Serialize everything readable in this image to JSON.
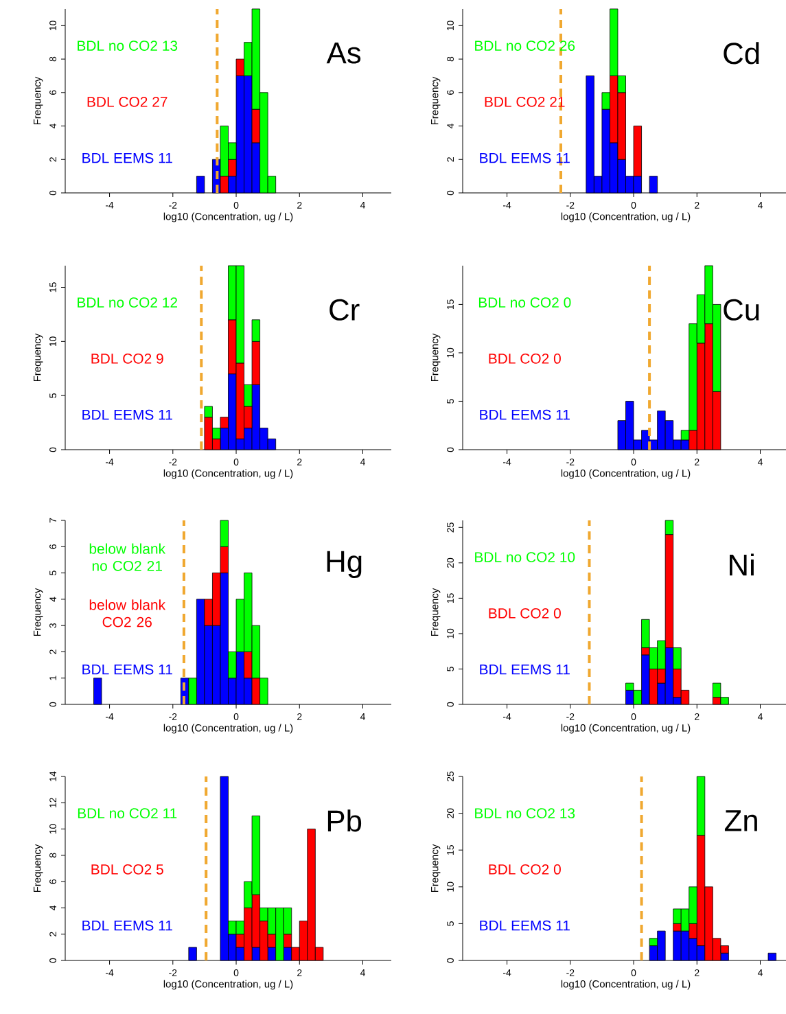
{
  "chart_data": [
    {
      "type": "bar",
      "title": "As",
      "xlabel": "log10 (Concentration, ug / L)",
      "ylabel": "Frequency",
      "stacked": true,
      "x": [
        -1.125,
        -0.875,
        -0.625,
        -0.375,
        -0.125,
        0.125,
        0.375,
        0.625,
        0.875,
        1.125
      ],
      "series": [
        {
          "name": "BDL EEMS 11",
          "color": "#0000ff",
          "values": [
            1,
            null,
            2,
            null,
            1,
            7,
            7,
            3,
            null,
            null
          ]
        },
        {
          "name": "BDL CO2 27",
          "color": "#ff0000",
          "values": [
            null,
            null,
            null,
            1,
            1,
            1,
            null,
            2,
            null,
            null
          ]
        },
        {
          "name": "BDL no CO2 13",
          "color": "#00ff00",
          "values": [
            null,
            null,
            null,
            3,
            1,
            null,
            2,
            6,
            6,
            1
          ]
        }
      ],
      "xlim": [
        -5.4,
        4.9
      ],
      "xticks": [
        -4,
        -2,
        0,
        2,
        4
      ],
      "ylim": [
        0,
        11
      ],
      "yticks": [
        0,
        2,
        4,
        6,
        8,
        10
      ],
      "ref_lines": [
        {
          "axis": "x",
          "value": -0.6,
          "color": "#f0a830",
          "line_style": "dashed"
        }
      ]
    },
    {
      "type": "bar",
      "title": "Cd",
      "xlabel": "log10 (Concentration, ug / L)",
      "ylabel": "Frequency",
      "stacked": true,
      "x": [
        -1.375,
        -1.125,
        -0.875,
        -0.625,
        -0.375,
        -0.125,
        0.125,
        0.375,
        0.625
      ],
      "series": [
        {
          "name": "BDL EEMS 11",
          "color": "#0000ff",
          "values": [
            7,
            1,
            5,
            3,
            2,
            1,
            1,
            null,
            1
          ]
        },
        {
          "name": "BDL CO2 21",
          "color": "#ff0000",
          "values": [
            null,
            null,
            null,
            4,
            4,
            null,
            3,
            null,
            null
          ]
        },
        {
          "name": "BDL no CO2 26",
          "color": "#00ff00",
          "values": [
            null,
            null,
            1,
            4,
            1,
            null,
            null,
            null,
            null
          ]
        }
      ],
      "xlim": [
        -5.4,
        4.9
      ],
      "xticks": [
        -4,
        -2,
        0,
        2,
        4
      ],
      "ylim": [
        0,
        11
      ],
      "yticks": [
        0,
        2,
        4,
        6,
        8,
        10
      ],
      "ref_lines": [
        {
          "axis": "x",
          "value": -2.3,
          "color": "#f0a830",
          "line_style": "dashed"
        }
      ]
    },
    {
      "type": "bar",
      "title": "Cr",
      "xlabel": "log10 (Concentration, ug / L)",
      "ylabel": "Frequency",
      "stacked": true,
      "x": [
        -0.875,
        -0.625,
        -0.375,
        -0.125,
        0.125,
        0.375,
        0.625,
        0.875,
        1.125
      ],
      "series": [
        {
          "name": "BDL EEMS 11",
          "color": "#0000ff",
          "values": [
            null,
            null,
            2,
            7,
            1,
            2,
            6,
            2,
            1
          ]
        },
        {
          "name": "BDL CO2 9",
          "color": "#ff0000",
          "values": [
            3,
            1,
            1,
            5,
            7,
            2,
            4,
            null,
            null
          ]
        },
        {
          "name": "BDL no CO2 12",
          "color": "#00ff00",
          "values": [
            1,
            1,
            null,
            5,
            9,
            2,
            2,
            null,
            null
          ]
        }
      ],
      "xlim": [
        -5.4,
        4.9
      ],
      "xticks": [
        -4,
        -2,
        0,
        2,
        4
      ],
      "ylim": [
        0,
        17
      ],
      "yticks": [
        0,
        5,
        10,
        15
      ],
      "ref_lines": [
        {
          "axis": "x",
          "value": -1.1,
          "color": "#f0a830",
          "line_style": "dashed"
        }
      ]
    },
    {
      "type": "bar",
      "title": "Cu",
      "xlabel": "log10 (Concentration, ug / L)",
      "ylabel": "Frequency",
      "stacked": true,
      "x": [
        -0.375,
        -0.125,
        0.125,
        0.375,
        0.625,
        0.875,
        1.125,
        1.375,
        1.625,
        1.875,
        2.125,
        2.375,
        2.625
      ],
      "series": [
        {
          "name": "BDL EEMS 11",
          "color": "#0000ff",
          "values": [
            3,
            5,
            1,
            2,
            1,
            4,
            3,
            1,
            1,
            null,
            null,
            null,
            null
          ]
        },
        {
          "name": "BDL CO2 0",
          "color": "#ff0000",
          "values": [
            null,
            null,
            null,
            null,
            null,
            null,
            null,
            null,
            null,
            2,
            11,
            13,
            6
          ]
        },
        {
          "name": "BDL no CO2 0",
          "color": "#00ff00",
          "values": [
            null,
            null,
            null,
            null,
            null,
            null,
            null,
            null,
            1,
            11,
            5,
            6,
            9
          ]
        }
      ],
      "xlim": [
        -5.4,
        4.9
      ],
      "xticks": [
        -4,
        -2,
        0,
        2,
        4
      ],
      "ylim": [
        0,
        19
      ],
      "yticks": [
        0,
        5,
        10,
        15
      ],
      "ref_lines": [
        {
          "axis": "x",
          "value": 0.5,
          "color": "#f0a830",
          "line_style": "dashed"
        }
      ]
    },
    {
      "type": "bar",
      "title": "Hg",
      "xlabel": "log10 (Concentration, ug / L)",
      "ylabel": "Frequency",
      "stacked": true,
      "x": [
        -4.375,
        -1.625,
        -1.375,
        -1.125,
        -0.875,
        -0.625,
        -0.375,
        -0.125,
        0.125,
        0.375,
        0.625,
        0.875
      ],
      "series": [
        {
          "name": "BDL EEMS 11",
          "color": "#0000ff",
          "values": [
            1,
            1,
            null,
            4,
            3,
            3,
            5,
            1,
            2,
            1,
            null,
            null
          ]
        },
        {
          "name": "below blank CO2 26",
          "color": "#ff0000",
          "values": [
            null,
            null,
            null,
            null,
            1,
            2,
            1,
            null,
            null,
            1,
            1,
            null
          ]
        },
        {
          "name": "below blank no CO2 21",
          "color": "#00ff00",
          "values": [
            null,
            null,
            1,
            null,
            null,
            null,
            1,
            1,
            2,
            3,
            2,
            1
          ]
        }
      ],
      "xlim": [
        -5.4,
        4.9
      ],
      "xticks": [
        -4,
        -2,
        0,
        2,
        4
      ],
      "ylim": [
        0,
        7
      ],
      "yticks": [
        0,
        1,
        2,
        3,
        4,
        5,
        6,
        7
      ],
      "ref_lines": [
        {
          "axis": "x",
          "value": -1.65,
          "color": "#f0a830",
          "line_style": "dashed"
        }
      ]
    },
    {
      "type": "bar",
      "title": "Ni",
      "xlabel": "log10 (Concentration, ug / L)",
      "ylabel": "Frequency",
      "stacked": true,
      "x": [
        -0.125,
        0.125,
        0.375,
        0.625,
        0.875,
        1.125,
        1.375,
        1.625,
        2.625,
        2.875
      ],
      "series": [
        {
          "name": "BDL EEMS 11",
          "color": "#0000ff",
          "values": [
            2,
            null,
            7,
            null,
            3,
            8,
            1,
            null,
            null,
            null
          ]
        },
        {
          "name": "BDL CO2 0",
          "color": "#ff0000",
          "values": [
            null,
            null,
            1,
            5,
            2,
            16,
            4,
            2,
            1,
            null
          ]
        },
        {
          "name": "BDL no CO2 10",
          "color": "#00ff00",
          "values": [
            1,
            2,
            4,
            3,
            4,
            2,
            3,
            null,
            2,
            1
          ]
        }
      ],
      "xlim": [
        -5.4,
        4.9
      ],
      "xticks": [
        -4,
        -2,
        0,
        2,
        4
      ],
      "ylim": [
        0,
        26
      ],
      "yticks": [
        0,
        5,
        10,
        15,
        20,
        25
      ],
      "ref_lines": [
        {
          "axis": "x",
          "value": -1.4,
          "color": "#f0a830",
          "line_style": "dashed"
        }
      ]
    },
    {
      "type": "bar",
      "title": "Pb",
      "xlabel": "log10 (Concentration, ug / L)",
      "ylabel": "Frequency",
      "stacked": true,
      "x": [
        -1.375,
        -0.375,
        -0.125,
        0.125,
        0.375,
        0.625,
        0.875,
        1.125,
        1.375,
        1.625,
        1.875,
        2.125,
        2.375,
        2.625
      ],
      "series": [
        {
          "name": "BDL EEMS 11",
          "color": "#0000ff",
          "values": [
            1,
            14,
            2,
            1,
            null,
            1,
            null,
            1,
            null,
            1,
            null,
            null,
            null,
            null
          ]
        },
        {
          "name": "BDL CO2 5",
          "color": "#ff0000",
          "values": [
            null,
            null,
            null,
            1,
            4,
            4,
            3,
            1,
            null,
            1,
            1,
            3,
            10,
            1
          ]
        },
        {
          "name": "BDL no CO2 11",
          "color": "#00ff00",
          "values": [
            null,
            null,
            1,
            1,
            2,
            6,
            1,
            2,
            4,
            2,
            null,
            null,
            null,
            null
          ]
        }
      ],
      "xlim": [
        -5.4,
        4.9
      ],
      "xticks": [
        -4,
        -2,
        0,
        2,
        4
      ],
      "ylim": [
        0,
        14
      ],
      "yticks": [
        0,
        2,
        4,
        6,
        8,
        10,
        12,
        14
      ],
      "ref_lines": [
        {
          "axis": "x",
          "value": -0.95,
          "color": "#f0a830",
          "line_style": "dashed"
        }
      ]
    },
    {
      "type": "bar",
      "title": "Zn",
      "xlabel": "log10 (Concentration, ug / L)",
      "ylabel": "Frequency",
      "stacked": true,
      "x": [
        0.625,
        0.875,
        1.375,
        1.625,
        1.875,
        2.125,
        2.375,
        2.625,
        2.875,
        4.375
      ],
      "series": [
        {
          "name": "BDL EEMS 11",
          "color": "#0000ff",
          "values": [
            2,
            4,
            4,
            4,
            3,
            2,
            null,
            null,
            1,
            1
          ]
        },
        {
          "name": "BDL CO2 0",
          "color": "#ff0000",
          "values": [
            null,
            null,
            1,
            null,
            2,
            15,
            10,
            3,
            1,
            null
          ]
        },
        {
          "name": "BDL no CO2 13",
          "color": "#00ff00",
          "values": [
            1,
            null,
            2,
            3,
            5,
            8,
            null,
            null,
            null,
            null
          ]
        }
      ],
      "xlim": [
        -5.4,
        4.9
      ],
      "xticks": [
        -4,
        -2,
        0,
        2,
        4
      ],
      "ylim": [
        0,
        25
      ],
      "yticks": [
        0,
        5,
        10,
        15,
        20,
        25
      ],
      "ref_lines": [
        {
          "axis": "x",
          "value": 0.25,
          "color": "#f0a830",
          "line_style": "dashed"
        }
      ]
    }
  ]
}
